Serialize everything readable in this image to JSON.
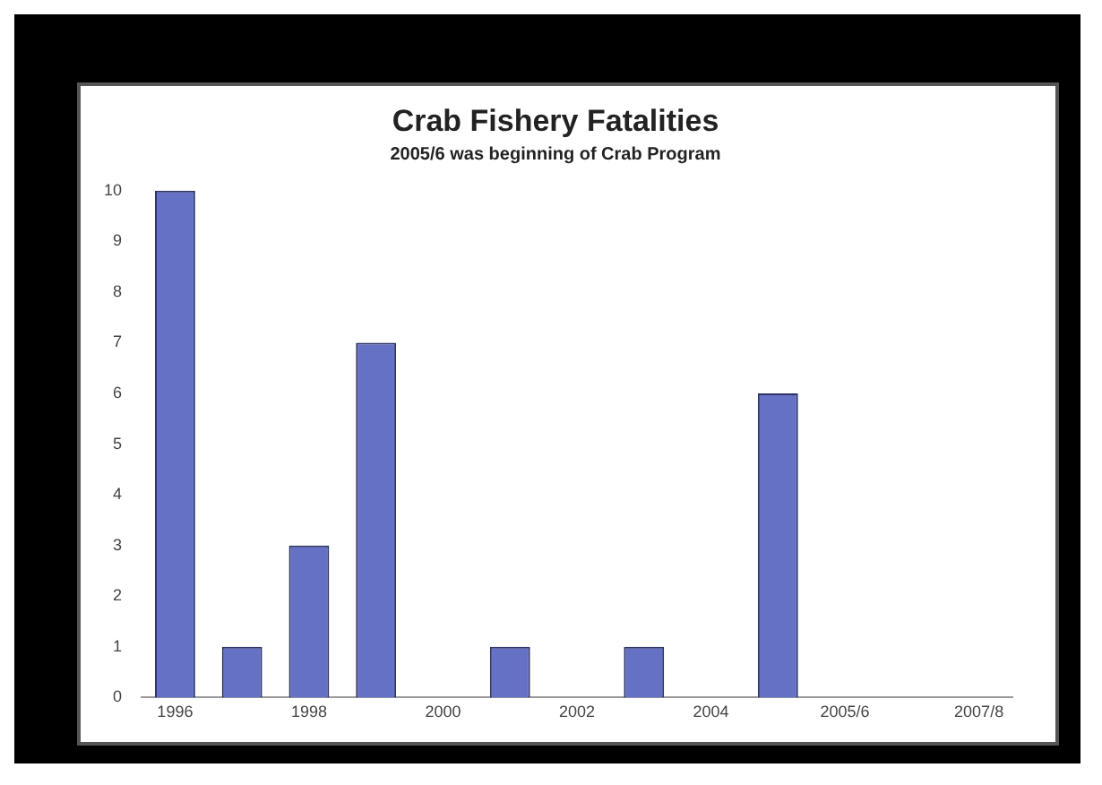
{
  "chart_data": {
    "type": "bar",
    "title": "Crab Fishery Fatalities",
    "subtitle": "2005/6 was beginning of Crab Program",
    "categories": [
      "1996",
      null,
      "1998",
      null,
      "2000",
      null,
      "2002",
      null,
      "2004",
      null,
      "2005/6",
      null,
      "2007/8"
    ],
    "values": [
      10,
      1,
      3,
      7,
      0,
      1,
      0,
      1,
      0,
      6,
      0,
      0,
      0
    ],
    "color": "#6471c4",
    "ylim": [
      0,
      10
    ],
    "yticks": [
      0,
      1,
      2,
      3,
      4,
      5,
      6,
      7,
      8,
      9,
      10
    ],
    "grid": false,
    "legend": false
  }
}
